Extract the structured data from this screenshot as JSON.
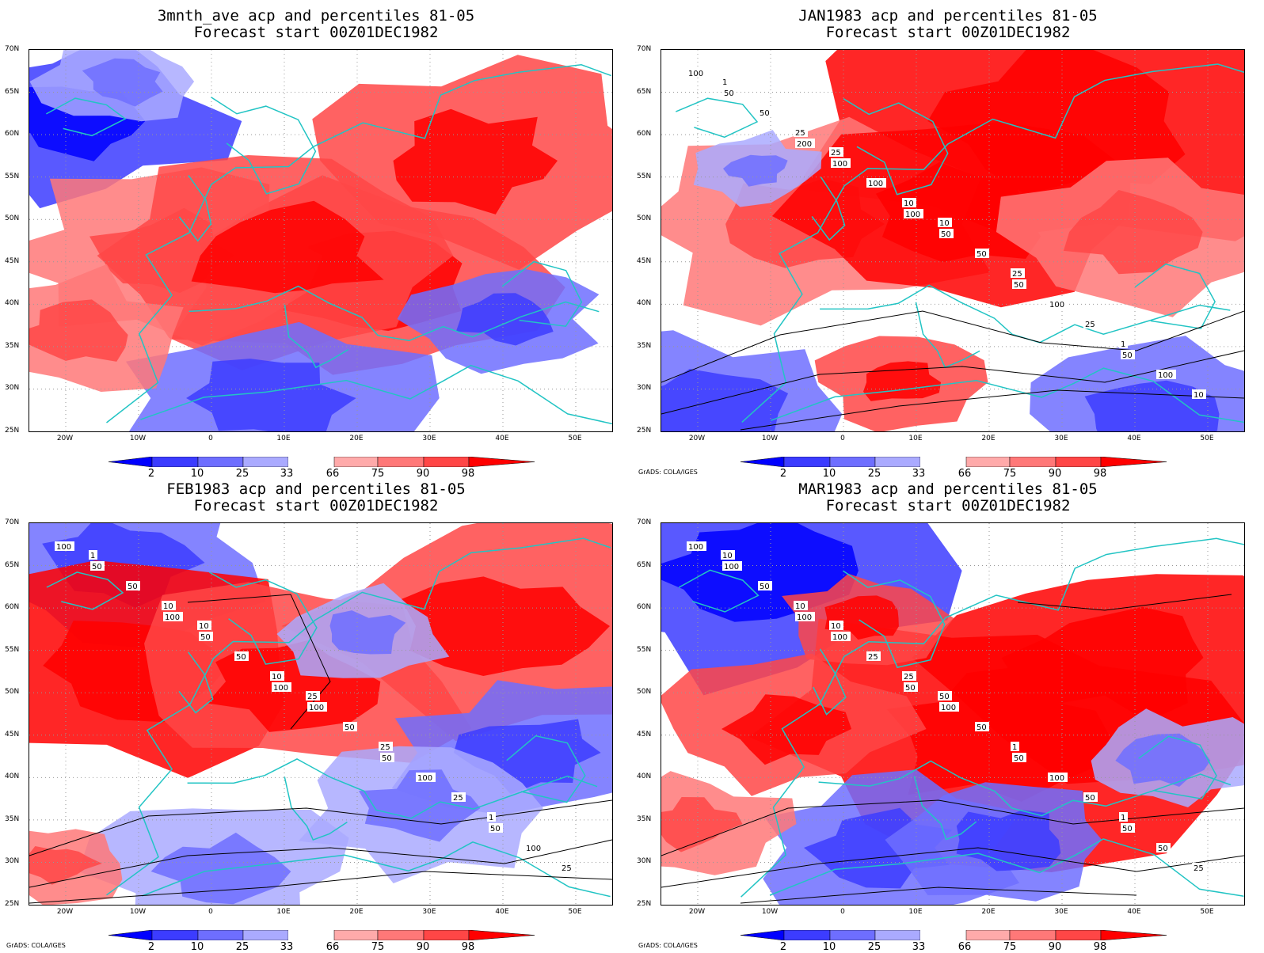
{
  "panels": [
    {
      "title1": "3mnth_ave acp and percentiles 81-05",
      "title2": "Forecast start 00Z01DEC1982",
      "credit": "",
      "contours": []
    },
    {
      "title1": "JAN1983 acp and percentiles 81-05",
      "title2": "Forecast start 00Z01DEC1982",
      "credit": "GrADS: COLA/IGES",
      "contours": [
        "100",
        "200",
        "100",
        "50",
        "50",
        "50",
        "100",
        "50",
        "100",
        "100",
        "50",
        "100",
        "50",
        "25",
        "10",
        "25",
        "10",
        "25",
        "1",
        "1",
        "25",
        "10"
      ]
    },
    {
      "title1": "FEB1983 acp and percentiles 81-05",
      "title2": "Forecast start 00Z01DEC1982",
      "credit": "GrADS: COLA/IGES",
      "contours": [
        "100",
        "100",
        "100",
        "50",
        "50",
        "50",
        "50",
        "100",
        "100",
        "100",
        "50",
        "50",
        "50",
        "25",
        "25",
        "10",
        "10",
        "25",
        "1",
        "1",
        "10",
        "25"
      ]
    },
    {
      "title1": "MAR1983 acp and percentiles 81-05",
      "title2": "Forecast start 00Z01DEC1982",
      "credit": "GrADS: COLA/IGES",
      "contours": [
        "100",
        "100",
        "50",
        "50",
        "50",
        "100",
        "100",
        "100",
        "100",
        "50",
        "50",
        "25",
        "50",
        "50",
        "25",
        "10",
        "25",
        "1",
        "1",
        "10",
        "10",
        "50"
      ]
    }
  ],
  "axes": {
    "lat_labels": [
      "70N",
      "65N",
      "60N",
      "55N",
      "50N",
      "45N",
      "40N",
      "35N",
      "30N",
      "25N"
    ],
    "lon_labels": [
      "20W",
      "10W",
      "0",
      "10E",
      "20E",
      "30E",
      "40E",
      "50E"
    ]
  },
  "colorbar": {
    "labels": [
      "2",
      "10",
      "25",
      "33",
      "66",
      "75",
      "90",
      "98"
    ],
    "colors": [
      "#0000ff",
      "#3c3cff",
      "#6e6eff",
      "#aaaaff",
      "#ffffff",
      "#ffaaaa",
      "#ff7878",
      "#ff4646",
      "#ff0000"
    ]
  }
}
